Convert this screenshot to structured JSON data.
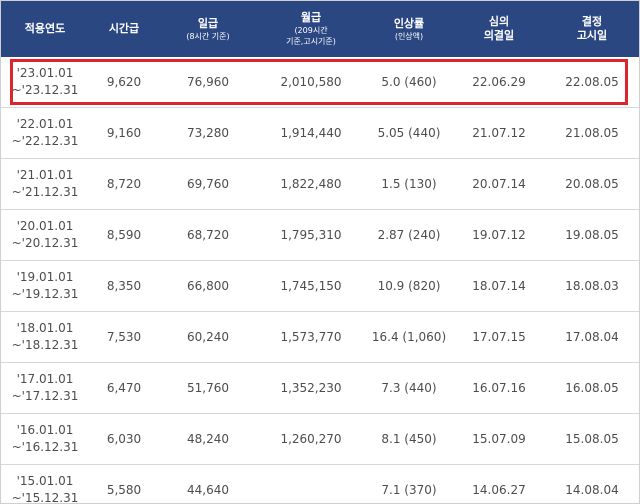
{
  "header": {
    "period": "적용연도",
    "hourly": "시간급",
    "daily": "일급",
    "daily_sub": "(8시간 기준)",
    "monthly": "월급",
    "monthly_sub_1": "(209시간",
    "monthly_sub_2": "기준,고시기준)",
    "rate": "인상률",
    "rate_sub": "(인상액)",
    "decision_1": "심의",
    "decision_2": "의결일",
    "notice_1": "결정",
    "notice_2": "고시일"
  },
  "rows": [
    {
      "period_start": "'23.01.01",
      "period_end": "~'23.12.31",
      "hourly": "9,620",
      "daily": "76,960",
      "monthly": "2,010,580",
      "rate": "5.0 (460)",
      "decision": "22.06.29",
      "notice": "22.08.05"
    },
    {
      "period_start": "'22.01.01",
      "period_end": "~'22.12.31",
      "hourly": "9,160",
      "daily": "73,280",
      "monthly": "1,914,440",
      "rate": "5.05 (440)",
      "decision": "21.07.12",
      "notice": "21.08.05"
    },
    {
      "period_start": "'21.01.01",
      "period_end": "~'21.12.31",
      "hourly": "8,720",
      "daily": "69,760",
      "monthly": "1,822,480",
      "rate": "1.5 (130)",
      "decision": "20.07.14",
      "notice": "20.08.05"
    },
    {
      "period_start": "'20.01.01",
      "period_end": "~'20.12.31",
      "hourly": "8,590",
      "daily": "68,720",
      "monthly": "1,795,310",
      "rate": "2.87 (240)",
      "decision": "19.07.12",
      "notice": "19.08.05"
    },
    {
      "period_start": "'19.01.01",
      "period_end": "~'19.12.31",
      "hourly": "8,350",
      "daily": "66,800",
      "monthly": "1,745,150",
      "rate": "10.9 (820)",
      "decision": "18.07.14",
      "notice": "18.08.03"
    },
    {
      "period_start": "'18.01.01",
      "period_end": "~'18.12.31",
      "hourly": "7,530",
      "daily": "60,240",
      "monthly": "1,573,770",
      "rate": "16.4 (1,060)",
      "decision": "17.07.15",
      "notice": "17.08.04"
    },
    {
      "period_start": "'17.01.01",
      "period_end": "~'17.12.31",
      "hourly": "6,470",
      "daily": "51,760",
      "monthly": "1,352,230",
      "rate": "7.3 (440)",
      "decision": "16.07.16",
      "notice": "16.08.05"
    },
    {
      "period_start": "'16.01.01",
      "period_end": "~'16.12.31",
      "hourly": "6,030",
      "daily": "48,240",
      "monthly": "1,260,270",
      "rate": "8.1 (450)",
      "decision": "15.07.09",
      "notice": "15.08.05"
    },
    {
      "period_start": "'15.01.01",
      "period_end": "~'15.12.31",
      "hourly": "5,580",
      "daily": "44,640",
      "monthly": "",
      "rate": "7.1 (370)",
      "decision": "14.06.27",
      "notice": "14.08.04"
    }
  ],
  "colors": {
    "header_bg": "#2a4782",
    "highlight_border": "#e0242c"
  }
}
